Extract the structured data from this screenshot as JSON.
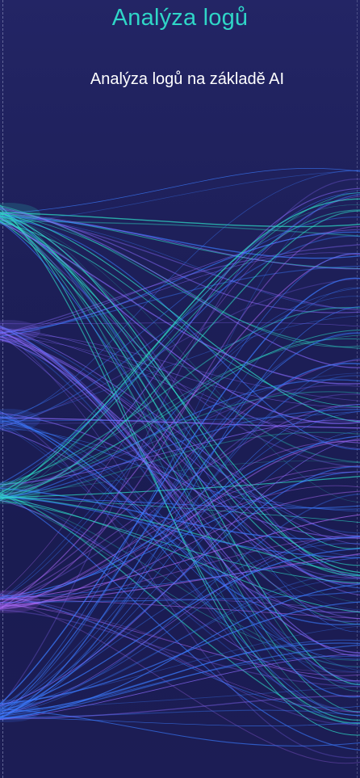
{
  "header": {
    "title": "Analýza logů",
    "subtitle": "Analýza logů na základě AI"
  },
  "illustration": {
    "icon": "data-flow-lines-graphic",
    "colors": {
      "background": "#1e1f5c",
      "title": "#2fd6c7",
      "text": "#ffffff",
      "line_teal": "#2fe0c8",
      "line_blue": "#3b7bff",
      "line_violet": "#8a6bff",
      "line_purple": "#b06cff"
    }
  }
}
